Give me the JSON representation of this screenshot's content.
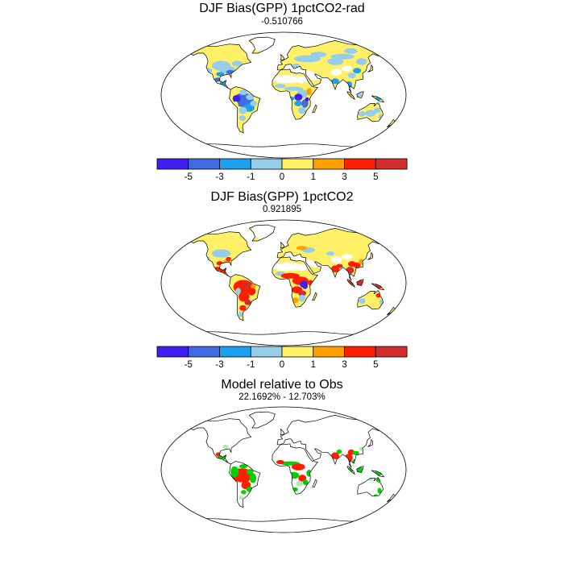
{
  "panels": [
    {
      "title": "DJF Bias(GPP) 1pctCO2-rad",
      "subtitle": "-0.510766",
      "scheme": "rad",
      "colorbar": {
        "colors": [
          "#3f1ef0",
          "#4169e1",
          "#1e9ff0",
          "#96cdea",
          "#fff068",
          "#ffa000",
          "#ff1e00",
          "#d22d2d"
        ],
        "tick_labels": [
          "-5",
          "-3",
          "-1",
          "0",
          "1",
          "3",
          "5"
        ]
      }
    },
    {
      "title": "DJF Bias(GPP) 1pctCO2",
      "subtitle": "0.921895",
      "scheme": "full",
      "colorbar": {
        "colors": [
          "#3f1ef0",
          "#4169e1",
          "#1e9ff0",
          "#96cdea",
          "#fff068",
          "#ffa000",
          "#ff1e00",
          "#d22d2d"
        ],
        "tick_labels": [
          "-5",
          "-3",
          "-1",
          "0",
          "1",
          "3",
          "5"
        ]
      }
    },
    {
      "title": "Model relative to Obs",
      "subtitle": "22.1692% - 12.703%",
      "scheme": "relative",
      "category_colors": {
        "better": "#00d200",
        "worse": "#ff1e00",
        "light": "#a8f0a8"
      }
    }
  ]
}
